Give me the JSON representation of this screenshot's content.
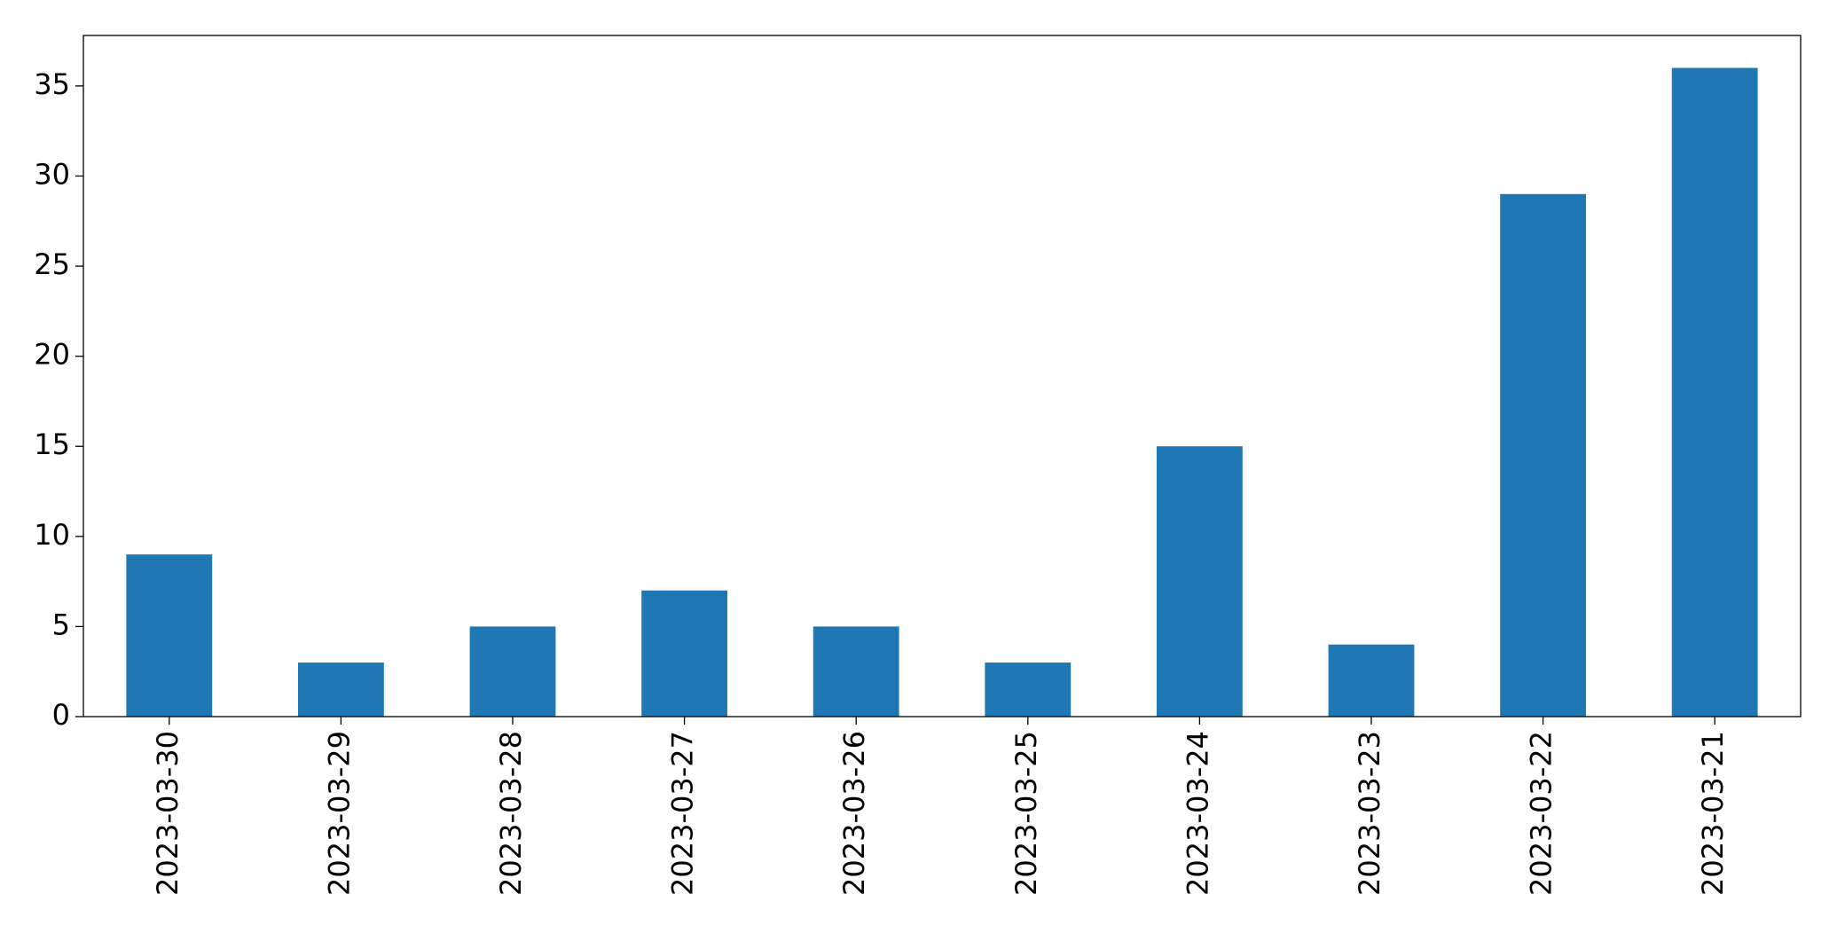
{
  "chart_data": {
    "type": "bar",
    "categories": [
      "2023-03-30",
      "2023-03-29",
      "2023-03-28",
      "2023-03-27",
      "2023-03-26",
      "2023-03-25",
      "2023-03-24",
      "2023-03-23",
      "2023-03-22",
      "2023-03-21"
    ],
    "values": [
      9,
      3,
      5,
      7,
      5,
      3,
      15,
      4,
      29,
      36
    ],
    "color": "#1f77b4",
    "ylim": [
      0,
      37.8
    ],
    "yticks": [
      0,
      5,
      10,
      15,
      20,
      25,
      30,
      35
    ],
    "grid": false
  }
}
